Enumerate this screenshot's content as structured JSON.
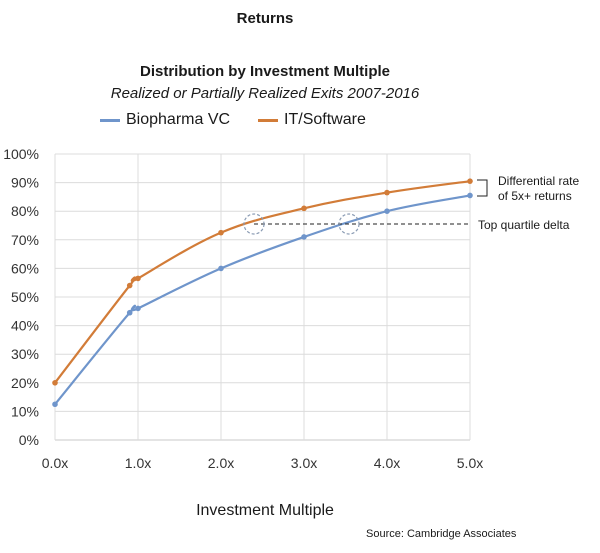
{
  "header": {
    "title": "Returns",
    "chart_title": "Distribution by Investment Multiple",
    "chart_subtitle": "Realized or Partially Realized Exits 2007-2016"
  },
  "legend": [
    {
      "label": "Biopharma VC",
      "color": "#6F95CB"
    },
    {
      "label": "IT/Software",
      "color": "#D27C38"
    }
  ],
  "axes": {
    "xlabel": "Investment Multiple",
    "yticks": [
      "0%",
      "10%",
      "20%",
      "30%",
      "40%",
      "50%",
      "60%",
      "70%",
      "80%",
      "90%",
      "100%"
    ],
    "xticks": [
      "0.0x",
      "1.0x",
      "2.0x",
      "3.0x",
      "4.0x",
      "5.0x"
    ]
  },
  "annotations": {
    "differential_line1": "Differential rate",
    "differential_line2": "of 5x+ returns",
    "top_quartile": "Top quartile delta"
  },
  "source": "Source: Cambridge Associates",
  "chart_data": {
    "type": "line",
    "title": "Distribution by Investment Multiple",
    "subtitle": "Realized or Partially Realized Exits 2007-2016",
    "xlabel": "Investment Multiple",
    "ylabel": "",
    "xlim": [
      0,
      5
    ],
    "ylim": [
      0,
      100
    ],
    "grid": true,
    "legend_position": "top",
    "x_tick_labels": [
      "0.0x",
      "1.0x",
      "2.0x",
      "3.0x",
      "4.0x",
      "5.0x"
    ],
    "y_tick_labels": [
      "0%",
      "10%",
      "20%",
      "30%",
      "40%",
      "50%",
      "60%",
      "70%",
      "80%",
      "90%",
      "100%"
    ],
    "series": [
      {
        "name": "Biopharma VC",
        "color": "#6F95CB",
        "x": [
          0.0,
          0.9,
          1.0,
          2.0,
          3.0,
          4.0,
          5.0
        ],
        "values": [
          12.5,
          44.5,
          46,
          60,
          71,
          80,
          85.5
        ]
      },
      {
        "name": "IT/Software",
        "color": "#D27C38",
        "x": [
          0.0,
          0.9,
          1.0,
          2.0,
          3.0,
          4.0,
          5.0
        ],
        "values": [
          20,
          54,
          56.5,
          72.5,
          81,
          86.5,
          90.5
        ]
      }
    ],
    "annotations": [
      {
        "text": "Differential rate of 5x+ returns",
        "type": "bracket",
        "x": 5.0,
        "y_range": [
          85.5,
          90.5
        ]
      },
      {
        "text": "Top quartile delta",
        "type": "dashed-hline",
        "y": 75,
        "x_from": 2.4,
        "x_to": 5.0,
        "circles_at_x": [
          2.4,
          3.55
        ]
      }
    ],
    "source": "Source: Cambridge Associates"
  }
}
